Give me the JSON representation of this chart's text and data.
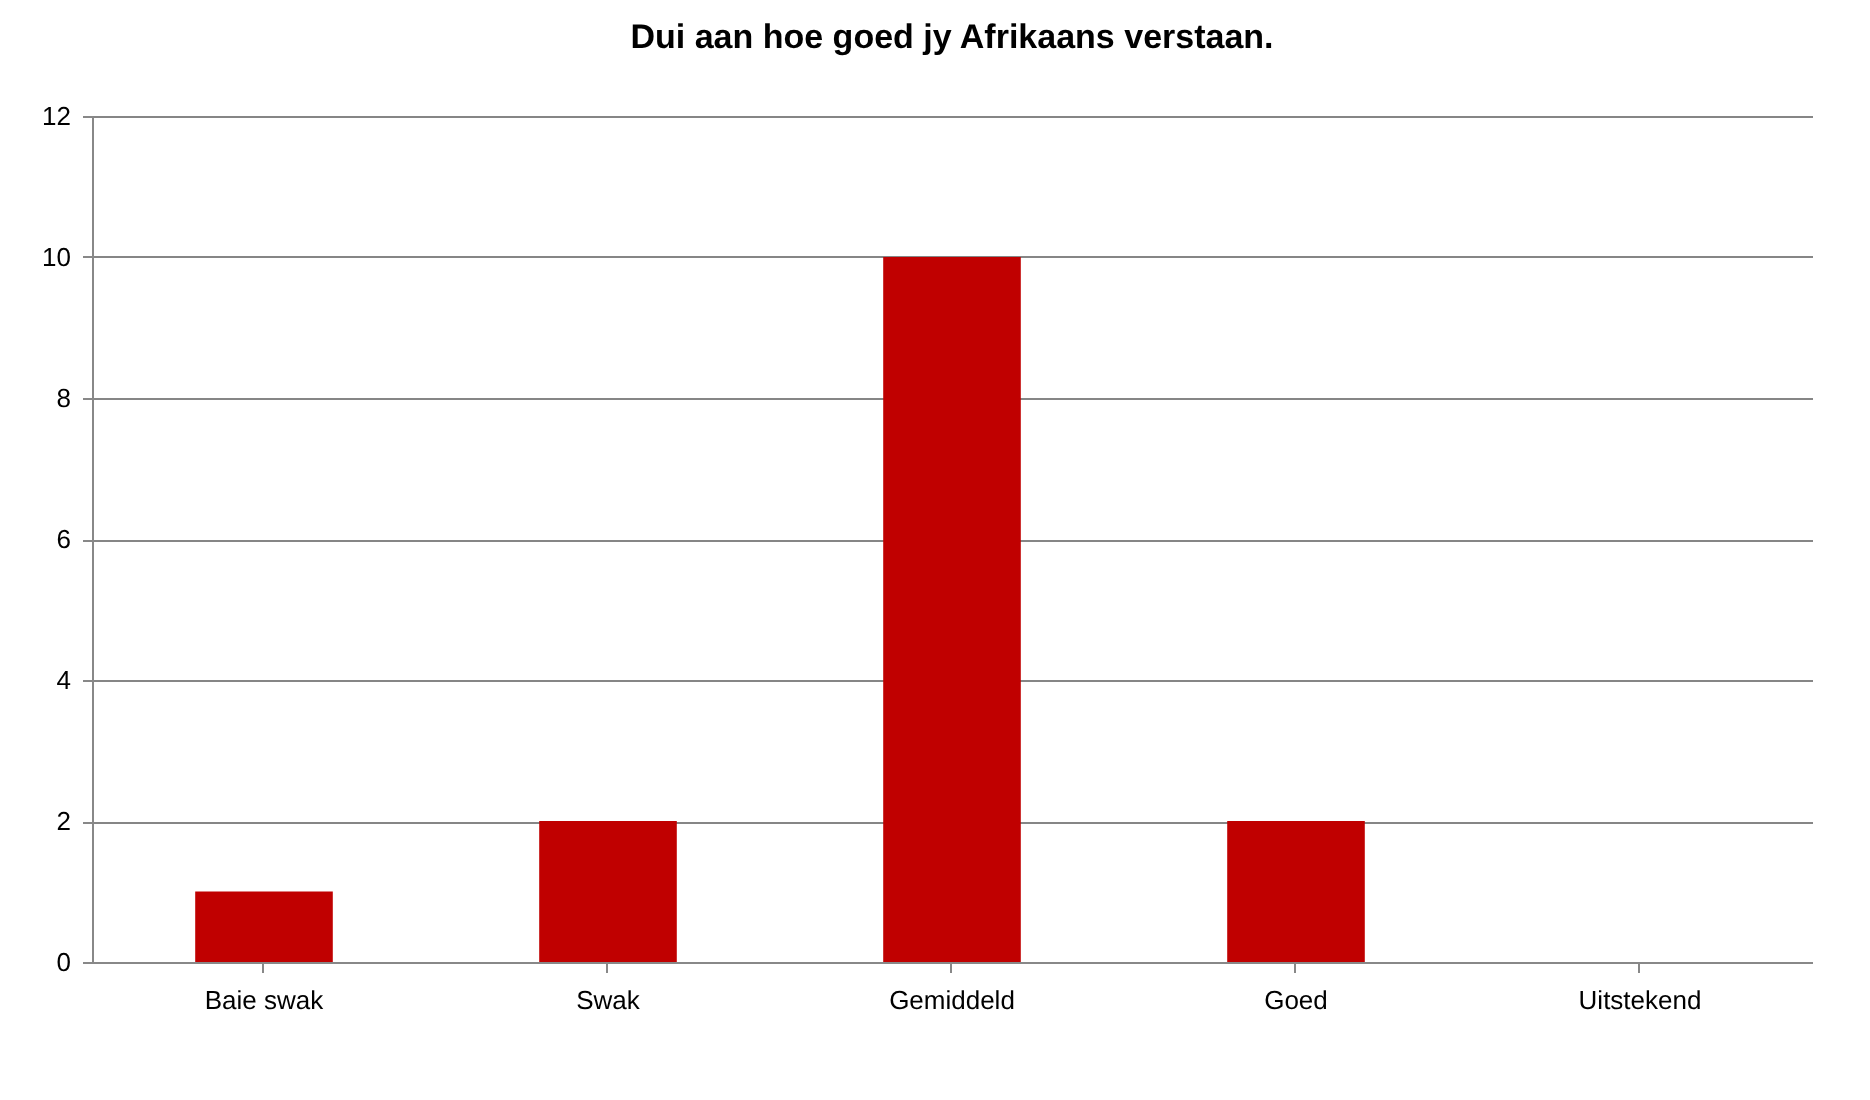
{
  "chart_data": {
    "type": "bar",
    "title": "Dui aan hoe goed jy Afrikaans verstaan.",
    "categories": [
      "Baie swak",
      "Swak",
      "Gemiddeld",
      "Goed",
      "Uitstekend"
    ],
    "values": [
      1,
      2,
      10,
      2,
      0
    ],
    "color": "#c00000",
    "ylim": [
      0,
      12
    ],
    "yticks": [
      0,
      2,
      4,
      6,
      8,
      10,
      12
    ],
    "grid": "y"
  }
}
